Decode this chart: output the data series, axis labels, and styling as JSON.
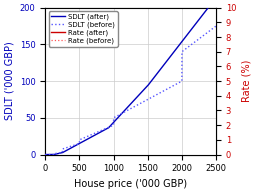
{
  "xlabel": "House price ('000 GBP)",
  "ylabel_left": "SDLT ('000 GBP)",
  "ylabel_right": "Rate (%)",
  "xlim": [
    0,
    2500
  ],
  "ylim_left": [
    0,
    200
  ],
  "ylim_right": [
    0,
    10
  ],
  "xticks": [
    0,
    500,
    1000,
    1500,
    2000,
    2500
  ],
  "yticks_left": [
    0,
    50,
    100,
    150,
    200
  ],
  "yticks_right": [
    0,
    1,
    2,
    3,
    4,
    5,
    6,
    7,
    8,
    9,
    10
  ],
  "color_sdlt_after": "#0000bb",
  "color_sdlt_before": "#5555ff",
  "color_rate_after": "#cc0000",
  "color_rate_before": "#ff5555",
  "legend_labels": [
    "SDLT (after)",
    "SDLT (before)",
    "Rate (after)",
    "Rate (before)"
  ],
  "background_color": "#ffffff",
  "grid_color": "#cccccc"
}
